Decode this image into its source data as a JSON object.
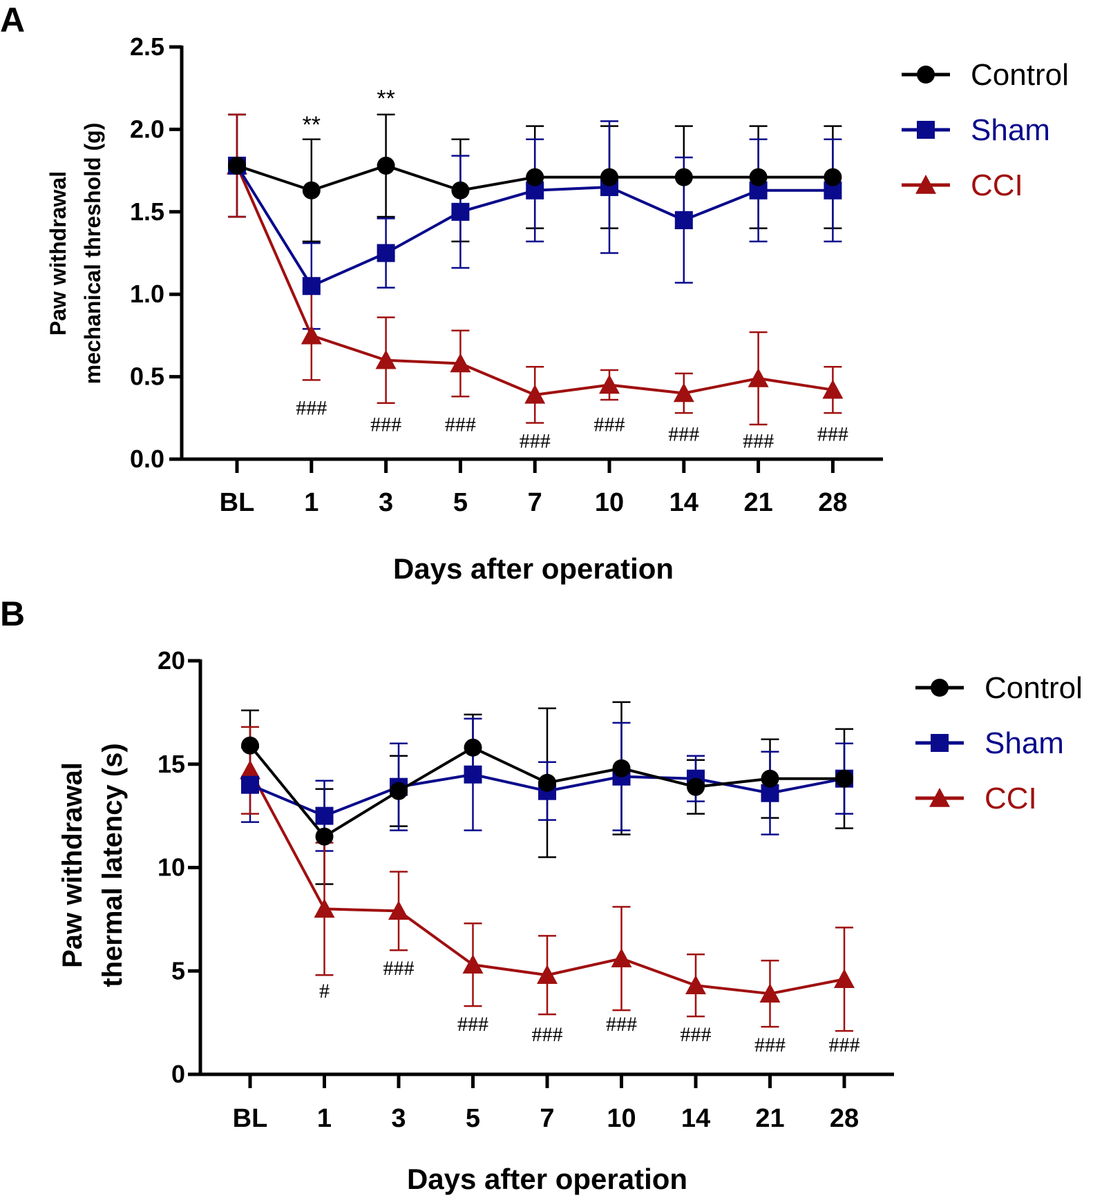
{
  "chart_data": [
    {
      "panel": "A",
      "type": "line",
      "categories": [
        "BL",
        "1",
        "3",
        "5",
        "7",
        "10",
        "14",
        "21",
        "28"
      ],
      "ylabel_lines": [
        "Paw withdrawal",
        "mechanical threshold (g)"
      ],
      "xlabel": "Days after operation",
      "ylim": [
        0,
        2.5
      ],
      "yticks": [
        "0.0",
        "0.5",
        "1.0",
        "1.5",
        "2.0",
        "2.5"
      ],
      "ytick_values": [
        0,
        0.5,
        1.0,
        1.5,
        2.0,
        2.5
      ],
      "legend": {
        "placement": "top-right"
      },
      "series": [
        {
          "name": "Control",
          "color": "#000000",
          "marker": "circle",
          "values": [
            1.78,
            1.63,
            1.78,
            1.63,
            1.71,
            1.71,
            1.71,
            1.71,
            1.71
          ],
          "errors": [
            0.31,
            0.31,
            0.31,
            0.31,
            0.31,
            0.31,
            0.31,
            0.31,
            0.31
          ]
        },
        {
          "name": "Sham",
          "color": "#0a0a8c",
          "marker": "square",
          "values": [
            1.78,
            1.05,
            1.25,
            1.5,
            1.63,
            1.65,
            1.45,
            1.63,
            1.63
          ],
          "errors": [
            0.31,
            0.26,
            0.21,
            0.34,
            0.31,
            0.4,
            0.38,
            0.31,
            0.31
          ]
        },
        {
          "name": "CCI",
          "color": "#a01010",
          "marker": "triangle",
          "values": [
            1.78,
            0.75,
            0.6,
            0.58,
            0.39,
            0.45,
            0.4,
            0.49,
            0.42
          ],
          "errors": [
            0.31,
            0.27,
            0.26,
            0.2,
            0.17,
            0.09,
            0.12,
            0.28,
            0.14
          ]
        }
      ],
      "annotations": [
        {
          "text": "**",
          "category": "1",
          "value": 1.98
        },
        {
          "text": "**",
          "category": "3",
          "value": 2.14
        },
        {
          "text": "###",
          "category": "1",
          "value": 0.27
        },
        {
          "text": "###",
          "category": "3",
          "value": 0.17
        },
        {
          "text": "###",
          "category": "5",
          "value": 0.17
        },
        {
          "text": "###",
          "category": "7",
          "value": 0.07
        },
        {
          "text": "###",
          "category": "10",
          "value": 0.17
        },
        {
          "text": "###",
          "category": "14",
          "value": 0.11
        },
        {
          "text": "###",
          "category": "21",
          "value": 0.07
        },
        {
          "text": "###",
          "category": "28",
          "value": 0.11
        }
      ]
    },
    {
      "panel": "B",
      "type": "line",
      "categories": [
        "BL",
        "1",
        "3",
        "5",
        "7",
        "10",
        "14",
        "21",
        "28"
      ],
      "ylabel_lines": [
        "Paw withdrawal",
        "thermal latency (s)"
      ],
      "xlabel": "Days after operation",
      "ylim": [
        0,
        20
      ],
      "yticks": [
        "0",
        "5",
        "10",
        "15",
        "20"
      ],
      "ytick_values": [
        0,
        5,
        10,
        15,
        20
      ],
      "legend": {
        "placement": "top-right"
      },
      "series": [
        {
          "name": "Control",
          "color": "#000000",
          "marker": "circle",
          "values": [
            15.9,
            11.5,
            13.7,
            15.8,
            14.1,
            14.8,
            13.9,
            14.3,
            14.3
          ],
          "errors": [
            1.7,
            2.3,
            1.7,
            1.6,
            3.6,
            3.2,
            1.3,
            1.9,
            2.4
          ]
        },
        {
          "name": "Sham",
          "color": "#0a0a8c",
          "marker": "square",
          "values": [
            14.0,
            12.5,
            13.9,
            14.5,
            13.7,
            14.4,
            14.3,
            13.6,
            14.3
          ],
          "errors": [
            1.8,
            1.7,
            2.1,
            2.7,
            1.4,
            2.6,
            1.1,
            2.0,
            1.7
          ]
        },
        {
          "name": "CCI",
          "color": "#a01010",
          "marker": "triangle",
          "values": [
            14.7,
            8.0,
            7.9,
            5.3,
            4.8,
            5.6,
            4.3,
            3.9,
            4.6
          ],
          "errors": [
            2.1,
            3.2,
            1.9,
            2.0,
            1.9,
            2.5,
            1.5,
            1.6,
            2.5
          ]
        }
      ],
      "annotations": [
        {
          "text": "#",
          "category": "1",
          "value": 3.7
        },
        {
          "text": "###",
          "category": "3",
          "value": 4.8
        },
        {
          "text": "###",
          "category": "5",
          "value": 2.1
        },
        {
          "text": "###",
          "category": "7",
          "value": 1.6
        },
        {
          "text": "###",
          "category": "10",
          "value": 2.1
        },
        {
          "text": "###",
          "category": "14",
          "value": 1.6
        },
        {
          "text": "###",
          "category": "21",
          "value": 1.1
        },
        {
          "text": "###",
          "category": "28",
          "value": 1.1
        }
      ]
    }
  ]
}
